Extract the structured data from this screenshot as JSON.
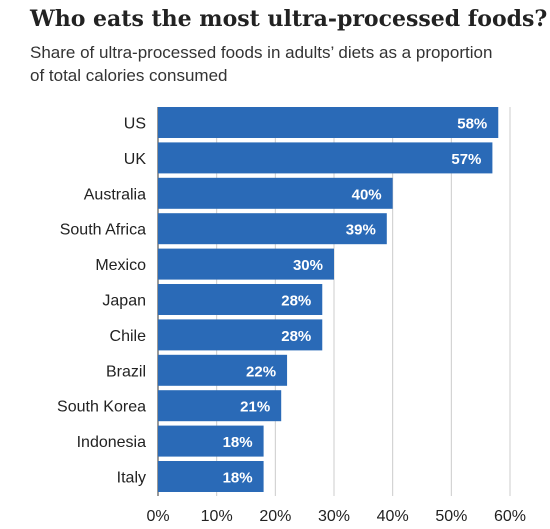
{
  "chart_data": {
    "type": "bar",
    "orientation": "horizontal",
    "title": "Who eats the most ultra-processed foods?",
    "subtitle": "Share of ultra-processed foods in adults’ diets as a proportion of total calories consumed",
    "categories": [
      "US",
      "UK",
      "Australia",
      "South Africa",
      "Mexico",
      "Japan",
      "Chile",
      "Brazil",
      "South Korea",
      "Indonesia",
      "Italy"
    ],
    "values": [
      58,
      57,
      40,
      39,
      30,
      28,
      28,
      22,
      21,
      18,
      18
    ],
    "value_labels": [
      "58%",
      "57%",
      "40%",
      "39%",
      "30%",
      "28%",
      "28%",
      "22%",
      "21%",
      "18%",
      "18%"
    ],
    "xlim": [
      0,
      60
    ],
    "xticks": [
      0,
      10,
      20,
      30,
      40,
      50,
      60
    ],
    "xtick_labels": [
      "0%",
      "10%",
      "20%",
      "30%",
      "40%",
      "50%",
      "60%"
    ],
    "grid": true,
    "bar_color": "#2a6ab7",
    "grid_color": "#cccccc"
  }
}
